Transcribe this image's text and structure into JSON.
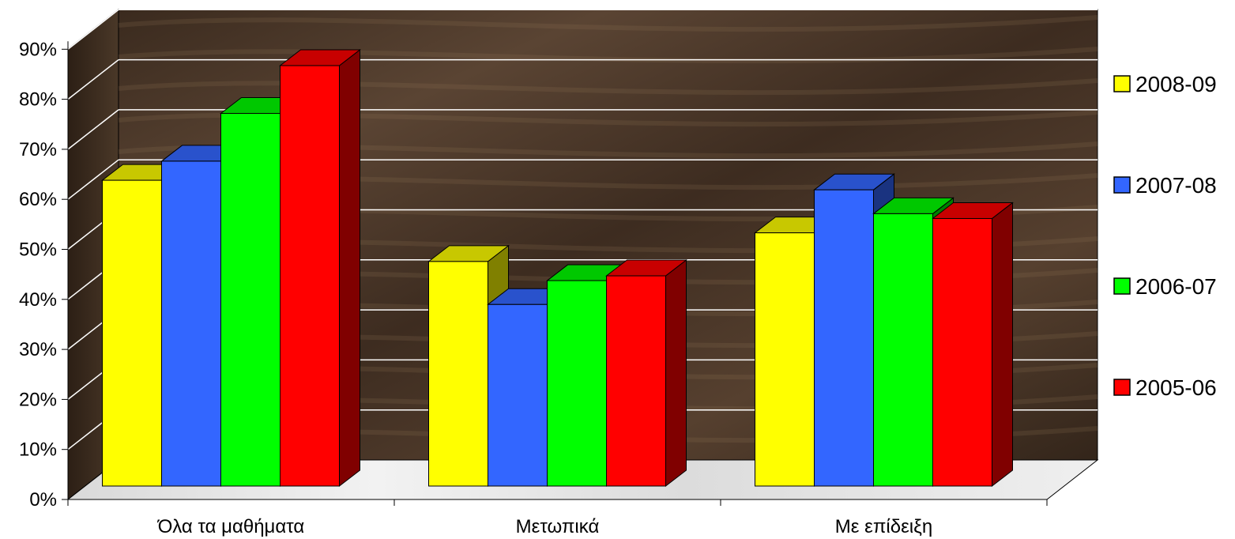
{
  "chart_data": {
    "type": "bar",
    "categories": [
      "Όλα τα μαθήματα",
      "Μετωπικά",
      "Με επίδειξη"
    ],
    "series": [
      {
        "name": "2008-09",
        "values": [
          64,
          47,
          53
        ],
        "color": "#FFFF00",
        "side_color": "#808000",
        "top_color": "#C8C800"
      },
      {
        "name": "2007-08",
        "values": [
          68,
          38,
          62
        ],
        "color": "#3366FF",
        "side_color": "#1A3380",
        "top_color": "#2952CC"
      },
      {
        "name": "2006-07",
        "values": [
          78,
          43,
          57
        ],
        "color": "#00FF00",
        "side_color": "#008000",
        "top_color": "#00C800"
      },
      {
        "name": "2005-06",
        "values": [
          88,
          44,
          56
        ],
        "color": "#FF0000",
        "side_color": "#800000",
        "top_color": "#C80000"
      }
    ],
    "yticks": [
      "0%",
      "10%",
      "20%",
      "30%",
      "40%",
      "50%",
      "60%",
      "70%",
      "80%",
      "90%"
    ],
    "ylim": [
      0,
      90
    ],
    "grid": true,
    "legend_position": "right",
    "background": "wood-texture",
    "floor": "marble-texture"
  }
}
